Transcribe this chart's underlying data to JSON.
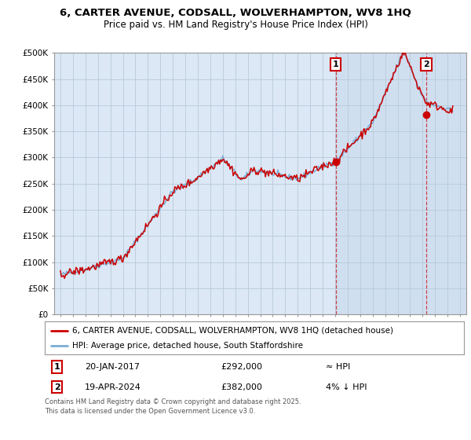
{
  "title_line1": "6, CARTER AVENUE, CODSALL, WOLVERHAMPTON, WV8 1HQ",
  "title_line2": "Price paid vs. HM Land Registry's House Price Index (HPI)",
  "background_color": "#ffffff",
  "plot_bg_color": "#dce8f5",
  "plot_bg_color_shaded": "#ccdaed",
  "grid_color": "#c8d4e0",
  "line_color_hpi": "#7aafd4",
  "line_color_price": "#cc0000",
  "dashed_line_color": "#cc0000",
  "marker1_date_num": 2017.055,
  "marker2_date_num": 2024.29,
  "marker1_price": 292000,
  "marker2_price": 382000,
  "ylim_min": 0,
  "ylim_max": 500000,
  "xlim_min": 1994.5,
  "xlim_max": 2027.5,
  "legend_label_price": "6, CARTER AVENUE, CODSALL, WOLVERHAMPTON, WV8 1HQ (detached house)",
  "legend_label_hpi": "HPI: Average price, detached house, South Staffordshire",
  "annotation1_label": "1",
  "annotation2_label": "2",
  "annotation1_date": "20-JAN-2017",
  "annotation2_date": "19-APR-2024",
  "annotation1_price_str": "£292,000",
  "annotation2_price_str": "£382,000",
  "annotation1_hpi_str": "≈ HPI",
  "annotation2_hpi_str": "4% ↓ HPI",
  "footer": "Contains HM Land Registry data © Crown copyright and database right 2025.\nThis data is licensed under the Open Government Licence v3.0."
}
